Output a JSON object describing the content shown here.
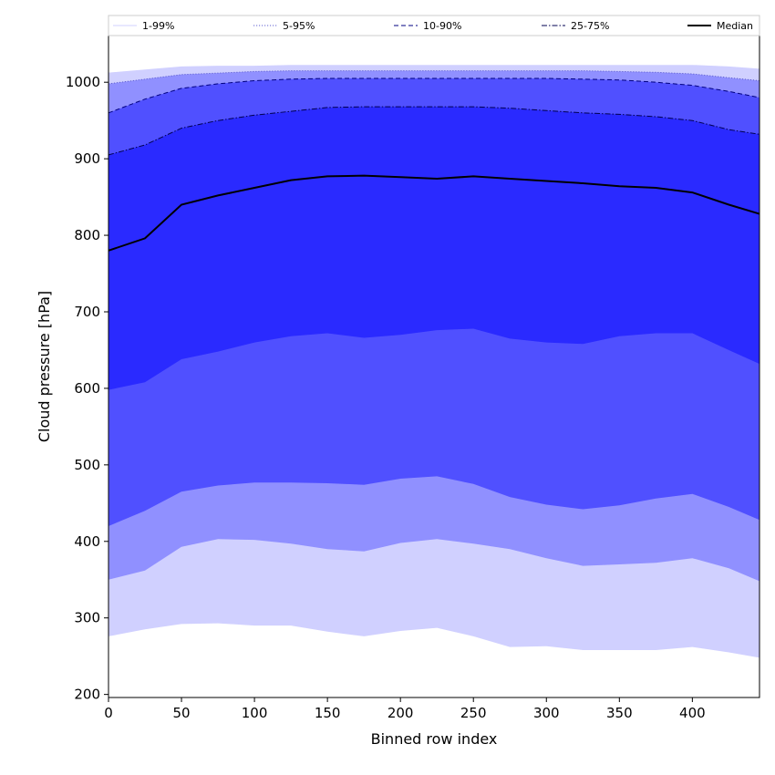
{
  "chart_data": {
    "type": "area",
    "title": "",
    "xlabel": "Binned row index",
    "ylabel": "Cloud pressure [hPa]",
    "xlim": [
      0,
      446
    ],
    "ylim": [
      196,
      1061
    ],
    "xticks": [
      0,
      50,
      100,
      150,
      200,
      250,
      300,
      350,
      400
    ],
    "yticks": [
      200,
      300,
      400,
      500,
      600,
      700,
      800,
      900,
      1000
    ],
    "legend_position": "top",
    "x": [
      0,
      25,
      50,
      75,
      100,
      125,
      150,
      175,
      200,
      225,
      250,
      275,
      300,
      325,
      350,
      375,
      400,
      425,
      446
    ],
    "bands": [
      {
        "name": "1-99%",
        "color": "#d0d0ff",
        "line_color": "#d0d0ff",
        "line_style": "solid",
        "low": [
          276,
          285,
          292,
          293,
          290,
          290,
          282,
          276,
          283,
          287,
          276,
          262,
          263,
          258,
          258,
          258,
          262,
          255,
          248
        ],
        "high": [
          1012,
          1016,
          1020,
          1021,
          1021,
          1022,
          1022,
          1022,
          1022,
          1022,
          1022,
          1022,
          1022,
          1022,
          1022,
          1022,
          1022,
          1020,
          1017
        ]
      },
      {
        "name": "5-95%",
        "color": "#9090ff",
        "line_color": "#6060d0",
        "line_style": "dotted",
        "low": [
          350,
          362,
          393,
          403,
          402,
          397,
          390,
          387,
          398,
          403,
          397,
          390,
          378,
          368,
          370,
          372,
          378,
          365,
          348
        ],
        "high": [
          998,
          1004,
          1010,
          1012,
          1014,
          1015,
          1015,
          1015,
          1015,
          1015,
          1015,
          1015,
          1015,
          1015,
          1014,
          1013,
          1011,
          1006,
          1002
        ]
      },
      {
        "name": "10-90%",
        "color": "#5050ff",
        "line_color": "#000080",
        "line_style": "dashed",
        "low": [
          420,
          440,
          465,
          473,
          477,
          477,
          476,
          474,
          482,
          485,
          475,
          458,
          448,
          442,
          447,
          456,
          462,
          445,
          428
        ],
        "high": [
          960,
          978,
          992,
          998,
          1002,
          1004,
          1005,
          1005,
          1005,
          1005,
          1005,
          1005,
          1005,
          1004,
          1003,
          1000,
          996,
          988,
          980
        ]
      },
      {
        "name": "25-75%",
        "color": "#2a2aff",
        "line_color": "#000050",
        "line_style": "dashdot",
        "low": [
          598,
          608,
          638,
          648,
          660,
          668,
          672,
          666,
          670,
          676,
          678,
          665,
          660,
          658,
          668,
          672,
          672,
          650,
          632
        ],
        "high": [
          905,
          918,
          940,
          950,
          957,
          962,
          967,
          968,
          968,
          968,
          968,
          966,
          963,
          960,
          958,
          955,
          950,
          938,
          932
        ]
      }
    ],
    "series": [
      {
        "name": "Median",
        "color": "#000000",
        "values": [
          780,
          796,
          840,
          852,
          862,
          872,
          877,
          878,
          876,
          874,
          877,
          874,
          871,
          868,
          864,
          862,
          856,
          840,
          828
        ]
      }
    ],
    "legend": [
      "1-99%",
      "5-95%",
      "10-90%",
      "25-75%",
      "Median"
    ]
  }
}
